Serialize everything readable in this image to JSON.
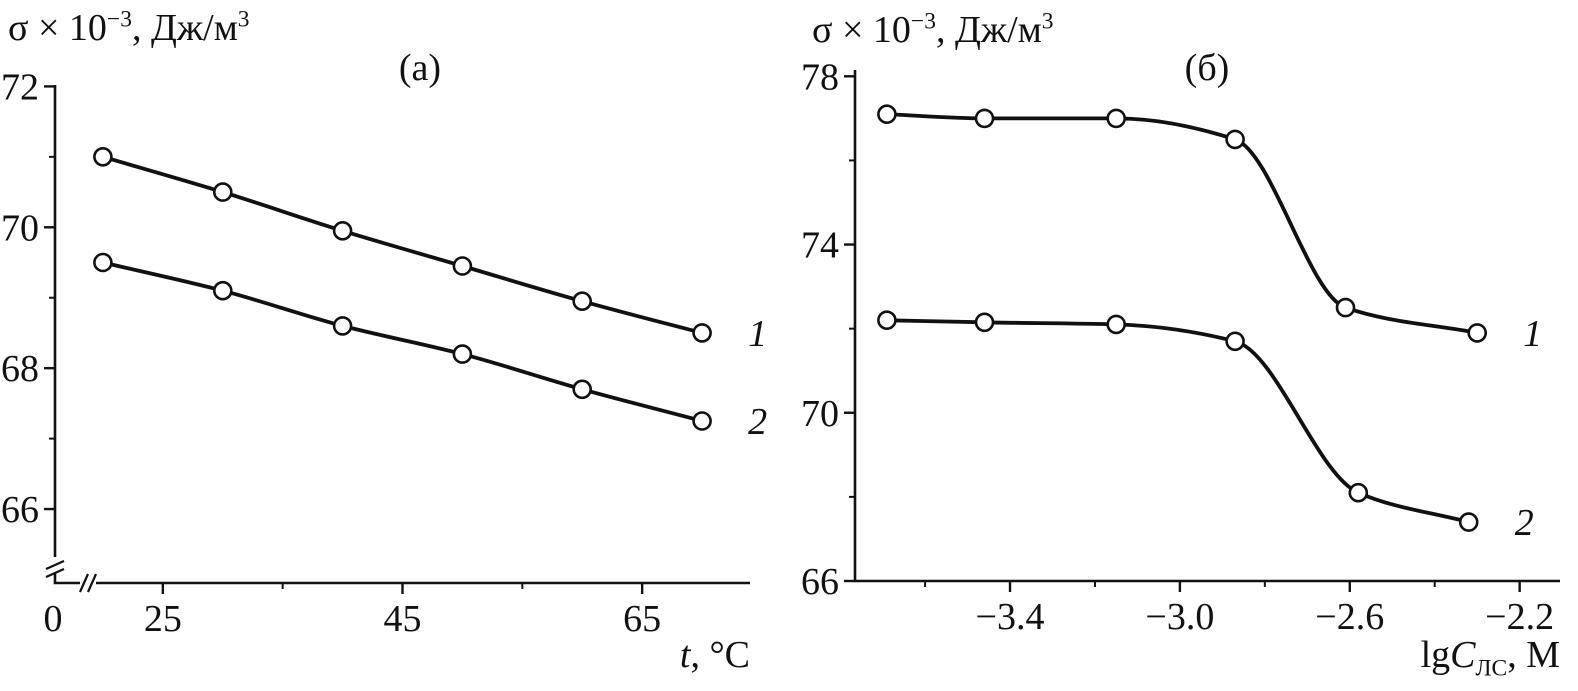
{
  "figure": {
    "background": "#ffffff",
    "ink": "#111111",
    "marker_fill": "#ffffff"
  },
  "chart_data": [
    {
      "type": "line",
      "panel_label": "(а)",
      "title": "(а)",
      "ylabel": "σ × 10⁻³, Дж/м³",
      "ylabel_parts": {
        "base1": "σ × 10",
        "sup1": "−3",
        "base2": ", Дж/м",
        "sup2": "3"
      },
      "xlabel": "t, °C",
      "xlabel_parts": {
        "var": "t",
        "rest": ", °C"
      },
      "xlim": [
        16,
        74
      ],
      "ylim": [
        64.95,
        72.02
      ],
      "x_tick_values": [
        25,
        45,
        65
      ],
      "x_tick_labels": [
        "25",
        "45",
        "65"
      ],
      "x_minor_tick_values": [
        35,
        55
      ],
      "y_tick_values": [
        66,
        68,
        70,
        72
      ],
      "y_tick_labels": [
        "66",
        "68",
        "70",
        "72"
      ],
      "y_minor_tick_values": [
        67,
        69,
        71
      ],
      "origin_label": "0",
      "axis_breaks": true,
      "grid": false,
      "legend_position": "labels-at-line-ends",
      "series": [
        {
          "name": "1",
          "x": [
            20,
            30,
            40,
            50,
            60,
            70
          ],
          "values": [
            71.0,
            70.5,
            69.95,
            69.45,
            68.95,
            68.5
          ]
        },
        {
          "name": "2",
          "x": [
            20,
            30,
            40,
            50,
            60,
            70
          ],
          "values": [
            69.5,
            69.1,
            68.6,
            68.2,
            67.7,
            67.25
          ]
        }
      ]
    },
    {
      "type": "line",
      "panel_label": "(б)",
      "title": "(б)",
      "ylabel": "σ × 10⁻³, Дж/м³",
      "ylabel_parts": {
        "base1": "σ × 10",
        "sup1": "−3",
        "base2": ", Дж/м",
        "sup2": "3"
      },
      "xlabel": "lgCЛС, М",
      "xlabel_parts": {
        "fn": "lg",
        "var": "C",
        "sub": "ЛС",
        "rest": ", М"
      },
      "xlim": [
        -3.765,
        -2.105
      ],
      "ylim": [
        66,
        78.15
      ],
      "x_tick_values": [
        -3.4,
        -3.0,
        -2.6,
        -2.2
      ],
      "x_tick_labels": [
        "−3.4",
        "−3.0",
        "−2.6",
        "−2.2"
      ],
      "x_minor_tick_values": [
        -3.6,
        -3.2,
        -2.8,
        -2.4
      ],
      "y_tick_values": [
        66,
        70,
        74,
        78
      ],
      "y_tick_labels": [
        "66",
        "70",
        "74",
        "78"
      ],
      "y_minor_tick_values": [
        68,
        72,
        76
      ],
      "axis_breaks": false,
      "grid": false,
      "legend_position": "labels-at-line-ends",
      "series": [
        {
          "name": "1",
          "x": [
            -3.69,
            -3.46,
            -3.15,
            -2.87,
            -2.61,
            -2.3
          ],
          "values": [
            77.1,
            77.0,
            77.0,
            76.5,
            72.5,
            71.9
          ]
        },
        {
          "name": "2",
          "x": [
            -3.69,
            -3.46,
            -3.15,
            -2.87,
            -2.58,
            -2.32
          ],
          "values": [
            72.2,
            72.15,
            72.1,
            71.7,
            68.1,
            67.4
          ]
        }
      ]
    }
  ]
}
